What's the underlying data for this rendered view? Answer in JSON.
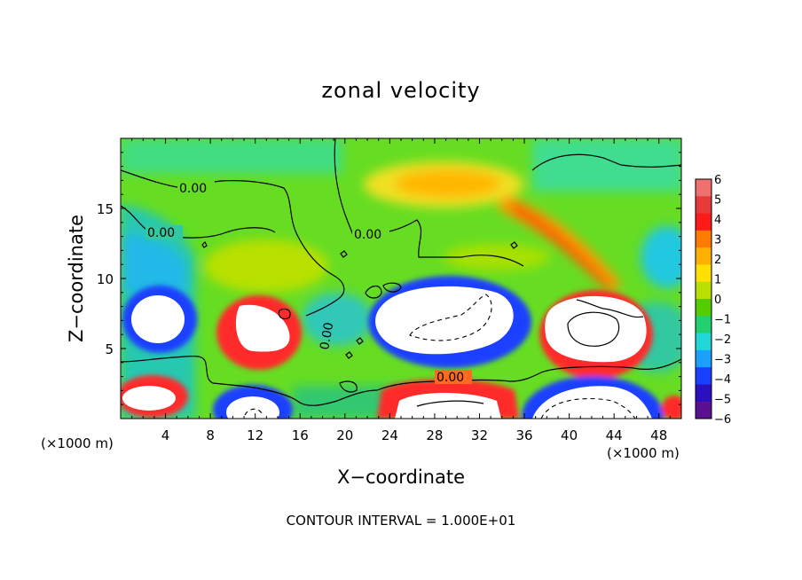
{
  "chart_data": {
    "type": "heatmap",
    "title": "zonal velocity",
    "xlabel": "X−coordinate",
    "ylabel": "Z−coordinate",
    "x_unit_left": "(×1000 m)",
    "x_unit_right": "(×1000 m)",
    "xlim": [
      0,
      50
    ],
    "ylim": [
      0,
      20
    ],
    "x_ticks": [
      4,
      8,
      12,
      16,
      20,
      24,
      28,
      32,
      36,
      40,
      44,
      48
    ],
    "x_tick_labels": [
      "4",
      "8",
      "12",
      "16",
      "20",
      "24",
      "28",
      "32",
      "36",
      "40",
      "44",
      "48"
    ],
    "y_ticks": [
      5,
      10,
      15
    ],
    "y_tick_labels": [
      "5",
      "10",
      "15"
    ],
    "colorbar": {
      "min": -6,
      "max": 6,
      "labels": [
        "6",
        "5",
        "4",
        "3",
        "2",
        "1",
        "0",
        "−1",
        "−2",
        "−3",
        "−4",
        "−5",
        "−6"
      ],
      "colors": [
        "#f07070",
        "#e83a3a",
        "#ff1a1a",
        "#ff7a00",
        "#ffb000",
        "#ffe000",
        "#b8e000",
        "#55cc00",
        "#22d070",
        "#20d8d8",
        "#1aa0ff",
        "#1a40ff",
        "#2a10c0",
        "#5a1090"
      ]
    },
    "contour_labels": [
      "0.00",
      "0.00",
      "0.00",
      "0.00",
      "0.00"
    ],
    "footer": "CONTOUR INTERVAL = 1.000E+01"
  }
}
